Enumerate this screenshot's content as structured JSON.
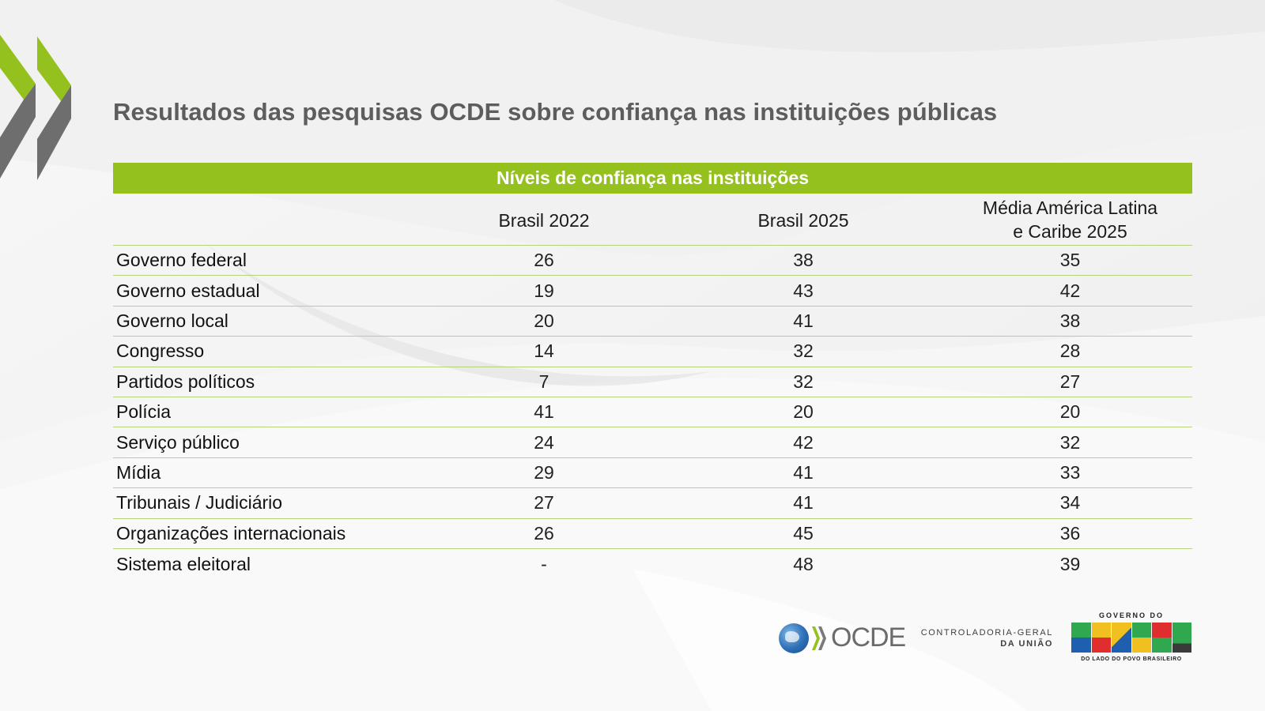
{
  "title": "Resultados das pesquisas OCDE sobre confiança nas instituições públicas",
  "table": {
    "band_header": "Níveis de confiança nas instituições",
    "columns": [
      "",
      "Brasil 2022",
      "Brasil 2025",
      "Média América Latina e Caribe 2025"
    ],
    "columns_display": {
      "c1": "Brasil 2022",
      "c2": "Brasil 2025",
      "c3_line1": "Média América Latina",
      "c3_line2": "e Caribe 2025"
    },
    "rows": [
      {
        "label": "Governo federal",
        "brasil_2022": "26",
        "brasil_2025": "38",
        "media_alc_2025": "35"
      },
      {
        "label": "Governo estadual",
        "brasil_2022": "19",
        "brasil_2025": "43",
        "media_alc_2025": "42"
      },
      {
        "label": "Governo local",
        "brasil_2022": "20",
        "brasil_2025": "41",
        "media_alc_2025": "38"
      },
      {
        "label": "Congresso",
        "brasil_2022": "14",
        "brasil_2025": "32",
        "media_alc_2025": "28"
      },
      {
        "label": "Partidos políticos",
        "brasil_2022": "7",
        "brasil_2025": "32",
        "media_alc_2025": "27"
      },
      {
        "label": "Polícia",
        "brasil_2022": "41",
        "brasil_2025": "20",
        "media_alc_2025": "20"
      },
      {
        "label": "Serviço público",
        "brasil_2022": "24",
        "brasil_2025": "42",
        "media_alc_2025": "32"
      },
      {
        "label": "Mídia",
        "brasil_2022": "29",
        "brasil_2025": "41",
        "media_alc_2025": "33"
      },
      {
        "label": "Tribunais / Judiciário",
        "brasil_2022": "27",
        "brasil_2025": "41",
        "media_alc_2025": "34"
      },
      {
        "label": "Organizações internacionais",
        "brasil_2022": "26",
        "brasil_2025": "45",
        "media_alc_2025": "36"
      },
      {
        "label": "Sistema eleitoral",
        "brasil_2022": "-",
        "brasil_2025": "48",
        "media_alc_2025": "39"
      }
    ]
  },
  "footer": {
    "oecd_logo_text": "OCDE",
    "cgu_line1": "CONTROLADORIA-GERAL",
    "cgu_line2": "DA UNIÃO",
    "gov_top": "GOVERNO DO",
    "gov_word": "BRASIL",
    "gov_bottom": "DO LADO DO POVO BRASILEIRO"
  },
  "colors": {
    "accent_green": "#95c11f",
    "chevron_gray": "#6e6e6e",
    "title_gray": "#5d5d5d",
    "rule_green": "#b5d47a"
  }
}
